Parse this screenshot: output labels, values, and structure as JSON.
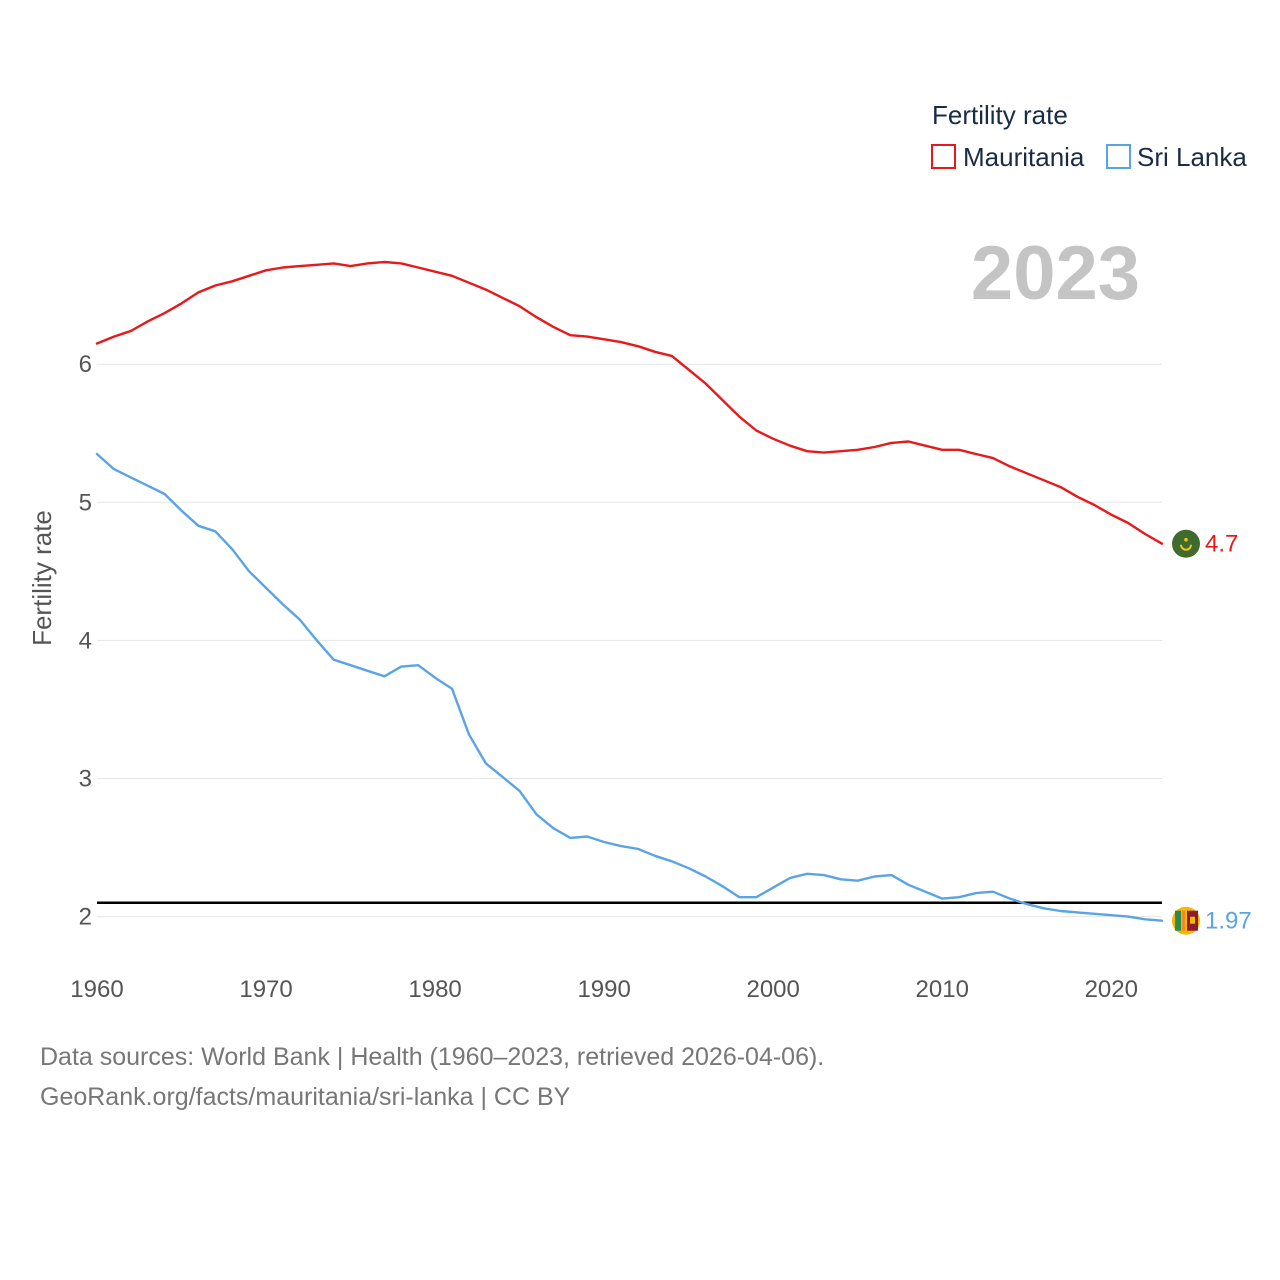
{
  "chart_data": {
    "type": "line",
    "ylabel": "Fertility rate",
    "xlabel": "",
    "xlim": [
      1960,
      2023
    ],
    "ylim": [
      1.7,
      6.95
    ],
    "x_ticks": [
      1960,
      1970,
      1980,
      1990,
      2000,
      2010,
      2020
    ],
    "y_ticks": [
      2,
      3,
      4,
      5,
      6
    ],
    "grid": true,
    "legend_title": "Fertility rate",
    "legend_position": "top-right",
    "current_year": "2023",
    "reference_line": {
      "value": 2.1,
      "color": "#000000"
    },
    "series": [
      {
        "name": "Mauritania",
        "color": "#e8191b",
        "end_label": "4.7",
        "x": [
          1960,
          1961,
          1962,
          1963,
          1964,
          1965,
          1966,
          1967,
          1968,
          1969,
          1970,
          1971,
          1972,
          1973,
          1974,
          1975,
          1976,
          1977,
          1978,
          1979,
          1980,
          1981,
          1982,
          1983,
          1984,
          1985,
          1986,
          1987,
          1988,
          1989,
          1990,
          1991,
          1992,
          1993,
          1994,
          1995,
          1996,
          1997,
          1998,
          1999,
          2000,
          2001,
          2002,
          2003,
          2004,
          2005,
          2006,
          2007,
          2008,
          2009,
          2010,
          2011,
          2012,
          2013,
          2014,
          2015,
          2016,
          2017,
          2018,
          2019,
          2020,
          2021,
          2022,
          2023
        ],
        "values": [
          6.15,
          6.2,
          6.24,
          6.31,
          6.37,
          6.44,
          6.52,
          6.57,
          6.6,
          6.64,
          6.68,
          6.7,
          6.71,
          6.72,
          6.73,
          6.71,
          6.73,
          6.74,
          6.73,
          6.7,
          6.67,
          6.64,
          6.59,
          6.54,
          6.48,
          6.42,
          6.34,
          6.27,
          6.21,
          6.2,
          6.18,
          6.16,
          6.13,
          6.09,
          6.06,
          5.96,
          5.86,
          5.74,
          5.62,
          5.52,
          5.46,
          5.41,
          5.37,
          5.36,
          5.37,
          5.38,
          5.4,
          5.43,
          5.44,
          5.41,
          5.38,
          5.38,
          5.35,
          5.32,
          5.26,
          5.21,
          5.16,
          5.11,
          5.04,
          4.98,
          4.91,
          4.85,
          4.77,
          4.7
        ]
      },
      {
        "name": "Sri Lanka",
        "color": "#5aa4e6",
        "end_label": "1.97",
        "x": [
          1960,
          1961,
          1962,
          1963,
          1964,
          1965,
          1966,
          1967,
          1968,
          1969,
          1970,
          1971,
          1972,
          1973,
          1974,
          1975,
          1976,
          1977,
          1978,
          1979,
          1980,
          1981,
          1982,
          1983,
          1984,
          1985,
          1986,
          1987,
          1988,
          1989,
          1990,
          1991,
          1992,
          1993,
          1994,
          1995,
          1996,
          1997,
          1998,
          1999,
          2000,
          2001,
          2002,
          2003,
          2004,
          2005,
          2006,
          2007,
          2008,
          2009,
          2010,
          2011,
          2012,
          2013,
          2014,
          2015,
          2016,
          2017,
          2018,
          2019,
          2020,
          2021,
          2022,
          2023
        ],
        "values": [
          5.35,
          5.24,
          5.18,
          5.12,
          5.06,
          4.94,
          4.83,
          4.79,
          4.66,
          4.5,
          4.38,
          4.26,
          4.15,
          4.0,
          3.86,
          3.82,
          3.78,
          3.74,
          3.81,
          3.82,
          3.73,
          3.65,
          3.32,
          3.11,
          3.01,
          2.91,
          2.74,
          2.64,
          2.57,
          2.58,
          2.54,
          2.51,
          2.49,
          2.44,
          2.4,
          2.35,
          2.29,
          2.22,
          2.14,
          2.14,
          2.21,
          2.28,
          2.31,
          2.3,
          2.27,
          2.26,
          2.29,
          2.3,
          2.23,
          2.18,
          2.13,
          2.14,
          2.17,
          2.18,
          2.13,
          2.09,
          2.06,
          2.04,
          2.03,
          2.02,
          2.01,
          2.0,
          1.98,
          1.97
        ]
      }
    ]
  },
  "footer": {
    "line1": "Data sources: World Bank | Health (1960–2023, retrieved 2026-04-06).",
    "line2": "GeoRank.org/facts/mauritania/sri-lanka | CC BY"
  }
}
